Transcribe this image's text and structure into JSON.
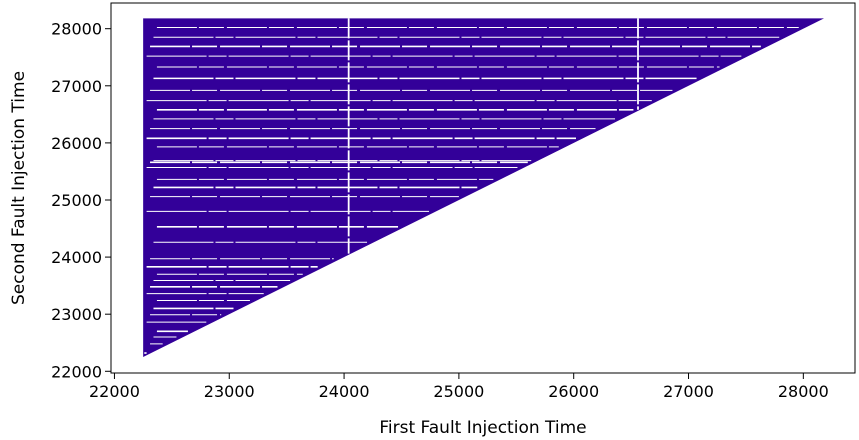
{
  "chart_data": {
    "type": "scatter",
    "title": "",
    "xlabel": "First Fault Injection Time",
    "ylabel": "Second Fault Injection Time",
    "xlim": [
      21970,
      28450
    ],
    "ylim": [
      21970,
      28450
    ],
    "x_ticks": [
      22000,
      23000,
      24000,
      25000,
      26000,
      27000,
      28000
    ],
    "y_ticks": [
      22000,
      23000,
      24000,
      25000,
      26000,
      27000,
      28000
    ],
    "grid": false,
    "legend": "none",
    "marker_color": "#330099",
    "description_of_data": "Dense fault pairs filling the triangular region where second time >= first time",
    "region": {
      "x_min": 22250,
      "x_max": 28180,
      "y_max": 28180,
      "constraint": "y >= x"
    },
    "gap_rows": [
      22320,
      22480,
      22600,
      22700,
      22860,
      22990,
      23100,
      23240,
      23360,
      23480,
      23590,
      23700,
      23830,
      23970,
      24260,
      24530,
      24800,
      25060,
      25220,
      25360,
      25570,
      25660,
      25690,
      25930,
      26080,
      26250,
      26420,
      26580,
      26740,
      26920,
      27130,
      27330,
      27520,
      27690,
      27850,
      28020
    ],
    "gap_columns": [
      24040,
      26560
    ]
  }
}
